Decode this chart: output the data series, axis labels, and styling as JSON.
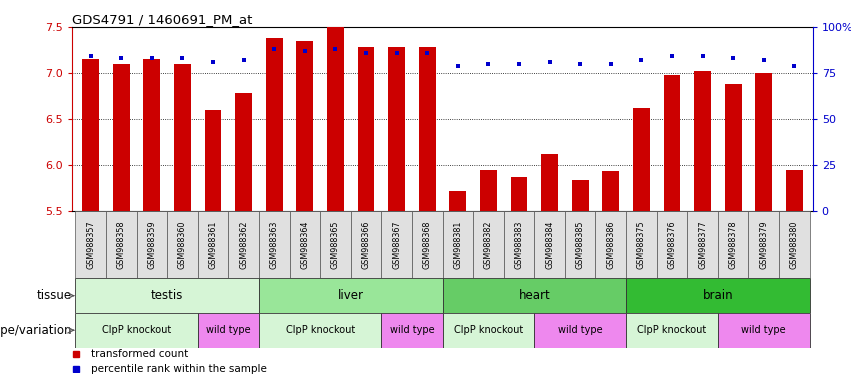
{
  "title": "GDS4791 / 1460691_PM_at",
  "samples": [
    "GSM988357",
    "GSM988358",
    "GSM988359",
    "GSM988360",
    "GSM988361",
    "GSM988362",
    "GSM988363",
    "GSM988364",
    "GSM988365",
    "GSM988366",
    "GSM988367",
    "GSM988368",
    "GSM988381",
    "GSM988382",
    "GSM988383",
    "GSM988384",
    "GSM988385",
    "GSM988386",
    "GSM988375",
    "GSM988376",
    "GSM988377",
    "GSM988378",
    "GSM988379",
    "GSM988380"
  ],
  "bar_values": [
    7.15,
    7.1,
    7.15,
    7.1,
    6.6,
    6.78,
    7.38,
    7.35,
    7.5,
    7.28,
    7.28,
    7.28,
    5.72,
    5.95,
    5.87,
    6.12,
    5.84,
    5.94,
    6.62,
    6.98,
    7.02,
    6.88,
    7.0,
    5.95
  ],
  "percentile_values": [
    84,
    83,
    83,
    83,
    81,
    82,
    88,
    87,
    88,
    86,
    86,
    86,
    79,
    80,
    80,
    81,
    80,
    80,
    82,
    84,
    84,
    83,
    82,
    79
  ],
  "bar_color": "#cc0000",
  "percentile_color": "#0000cc",
  "ylim_left": [
    5.5,
    7.5
  ],
  "ylim_right": [
    0,
    100
  ],
  "yticks_left": [
    5.5,
    6.0,
    6.5,
    7.0,
    7.5
  ],
  "yticks_right": [
    0,
    25,
    50,
    75,
    100
  ],
  "ytick_labels_right": [
    "0",
    "25",
    "50",
    "75",
    "100%"
  ],
  "grid_lines": [
    6.0,
    6.5,
    7.0
  ],
  "tissues": [
    {
      "label": "testis",
      "start": 0,
      "end": 6,
      "color": "#d6f5d6"
    },
    {
      "label": "liver",
      "start": 6,
      "end": 12,
      "color": "#99e699"
    },
    {
      "label": "heart",
      "start": 12,
      "end": 18,
      "color": "#66cc66"
    },
    {
      "label": "brain",
      "start": 18,
      "end": 24,
      "color": "#33bb33"
    }
  ],
  "genotypes": [
    {
      "label": "ClpP knockout",
      "start": 0,
      "end": 4,
      "color": "#d6f5d6"
    },
    {
      "label": "wild type",
      "start": 4,
      "end": 6,
      "color": "#ee88ee"
    },
    {
      "label": "ClpP knockout",
      "start": 6,
      "end": 10,
      "color": "#d6f5d6"
    },
    {
      "label": "wild type",
      "start": 10,
      "end": 12,
      "color": "#ee88ee"
    },
    {
      "label": "ClpP knockout",
      "start": 12,
      "end": 15,
      "color": "#d6f5d6"
    },
    {
      "label": "wild type",
      "start": 15,
      "end": 18,
      "color": "#ee88ee"
    },
    {
      "label": "ClpP knockout",
      "start": 18,
      "end": 21,
      "color": "#d6f5d6"
    },
    {
      "label": "wild type",
      "start": 21,
      "end": 24,
      "color": "#ee88ee"
    }
  ],
  "legend_items": [
    {
      "label": "transformed count",
      "color": "#cc0000"
    },
    {
      "label": "percentile rank within the sample",
      "color": "#0000cc"
    }
  ],
  "bar_width": 0.55,
  "bar_bottom": 5.5,
  "tissue_row_label": "tissue",
  "genotype_row_label": "genotype/variation",
  "bg_color": "#ffffff"
}
